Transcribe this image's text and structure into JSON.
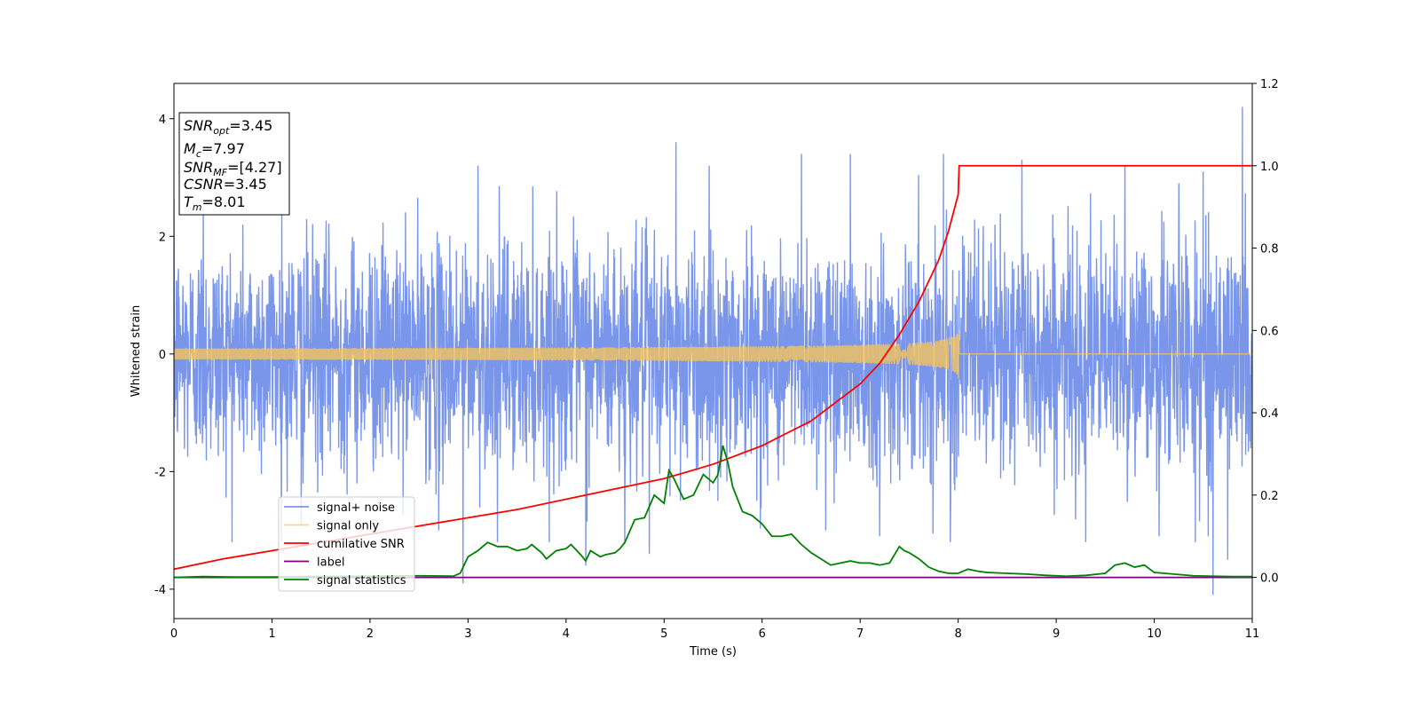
{
  "chart_data": {
    "type": "line",
    "xlabel": "Time (s)",
    "ylabel": "Whitened strain",
    "xlim": [
      0,
      11
    ],
    "ylim_left": [
      -4.5,
      4.6
    ],
    "ylim_right": [
      -0.1,
      1.2
    ],
    "x_ticks": [
      0,
      1,
      2,
      3,
      4,
      5,
      6,
      7,
      8,
      9,
      10,
      11
    ],
    "y_left_ticks": [
      -4,
      -2,
      0,
      2,
      4
    ],
    "y_right_ticks": [
      "0.0",
      "0.2",
      "0.4",
      "0.6",
      "0.8",
      "1.0",
      "1.2"
    ],
    "legend_placement": "lower-left",
    "grid": false,
    "info_box": [
      {
        "main": "SNR",
        "sub": "opt",
        "value": "=3.45"
      },
      {
        "main": "M",
        "sub": "c",
        "value": "=7.97"
      },
      {
        "main": "SNR",
        "sub": "MF",
        "value": "=[4.27]"
      },
      {
        "main": "CSNR",
        "sub": "",
        "value": "=3.45"
      },
      {
        "main": "T",
        "sub": "m",
        "value": "=8.01"
      }
    ],
    "series": [
      {
        "name": "signal+ noise",
        "axis": "left",
        "color": "#4169e1",
        "kind": "noise",
        "noise_std": 0.95,
        "peak_samples": [
          [
            0.3,
            2.6
          ],
          [
            1.1,
            2.5
          ],
          [
            1.3,
            -2.9
          ],
          [
            2.7,
            -3.0
          ],
          [
            2.95,
            -3.9
          ],
          [
            3.1,
            3.2
          ],
          [
            3.3,
            -3.2
          ],
          [
            4.2,
            -3.6
          ],
          [
            4.6,
            -3.2
          ],
          [
            4.85,
            -3.4
          ],
          [
            5.12,
            3.6
          ],
          [
            5.55,
            -2.5
          ],
          [
            6.4,
            3.4
          ],
          [
            6.65,
            -3.0
          ],
          [
            6.9,
            3.4
          ],
          [
            7.2,
            -3.1
          ],
          [
            7.85,
            3.4
          ],
          [
            7.92,
            -3.2
          ],
          [
            8.65,
            3.3
          ],
          [
            9.3,
            -3.2
          ],
          [
            9.7,
            3.2
          ],
          [
            10.05,
            -3.1
          ],
          [
            10.25,
            2.9
          ],
          [
            10.42,
            -3.2
          ],
          [
            10.5,
            3.1
          ],
          [
            10.55,
            -3.1
          ],
          [
            10.6,
            -4.1
          ],
          [
            10.75,
            -3.5
          ],
          [
            10.9,
            4.2
          ]
        ]
      },
      {
        "name": "signal only",
        "axis": "left",
        "color": "#f5c45e",
        "kind": "chirp",
        "start": 0,
        "merger": 8.01,
        "end": 11,
        "amplitude_at_merger": 0.5
      },
      {
        "name": "cumilative SNR",
        "axis": "right",
        "color": "#ff0000",
        "x": [
          0,
          0.5,
          1,
          1.5,
          2,
          2.5,
          3,
          3.5,
          4,
          4.5,
          5,
          5.5,
          6,
          6.5,
          7,
          7.2,
          7.4,
          7.6,
          7.8,
          7.9,
          8.0,
          8.01,
          11
        ],
        "y": [
          0.02,
          0.045,
          0.065,
          0.085,
          0.105,
          0.125,
          0.145,
          0.165,
          0.19,
          0.215,
          0.24,
          0.275,
          0.32,
          0.38,
          0.47,
          0.52,
          0.59,
          0.67,
          0.77,
          0.84,
          0.93,
          1.0,
          1.0
        ]
      },
      {
        "name": "label",
        "axis": "right",
        "color": "#800080",
        "x": [
          0,
          11
        ],
        "y": [
          0,
          0
        ]
      },
      {
        "name": "signal statistics",
        "axis": "right",
        "color": "#008000",
        "x": [
          0,
          0.3,
          0.6,
          1,
          1.5,
          2,
          2.5,
          2.85,
          2.92,
          3.0,
          3.1,
          3.2,
          3.3,
          3.4,
          3.5,
          3.6,
          3.65,
          3.75,
          3.8,
          3.9,
          4.0,
          4.05,
          4.15,
          4.2,
          4.25,
          4.35,
          4.4,
          4.5,
          4.55,
          4.6,
          4.7,
          4.8,
          4.9,
          5.0,
          5.05,
          5.1,
          5.2,
          5.3,
          5.4,
          5.5,
          5.55,
          5.6,
          5.65,
          5.7,
          5.8,
          5.9,
          6.0,
          6.1,
          6.2,
          6.3,
          6.4,
          6.5,
          6.6,
          6.7,
          6.8,
          6.9,
          7.0,
          7.1,
          7.2,
          7.3,
          7.4,
          7.45,
          7.5,
          7.6,
          7.7,
          7.8,
          7.9,
          8.0,
          8.1,
          8.2,
          8.3,
          8.5,
          8.7,
          8.9,
          9.1,
          9.3,
          9.5,
          9.6,
          9.7,
          9.8,
          9.9,
          10.0,
          10.2,
          10.4,
          10.6,
          10.8,
          11
        ],
        "y": [
          0.0,
          0.002,
          0.001,
          0.001,
          0.002,
          0.003,
          0.004,
          0.003,
          0.01,
          0.05,
          0.065,
          0.085,
          0.075,
          0.075,
          0.065,
          0.07,
          0.08,
          0.06,
          0.045,
          0.065,
          0.07,
          0.08,
          0.055,
          0.04,
          0.065,
          0.05,
          0.055,
          0.06,
          0.07,
          0.085,
          0.14,
          0.145,
          0.2,
          0.18,
          0.26,
          0.24,
          0.19,
          0.2,
          0.25,
          0.23,
          0.25,
          0.32,
          0.28,
          0.22,
          0.16,
          0.15,
          0.13,
          0.1,
          0.1,
          0.105,
          0.08,
          0.06,
          0.045,
          0.03,
          0.035,
          0.04,
          0.035,
          0.035,
          0.03,
          0.035,
          0.075,
          0.065,
          0.06,
          0.045,
          0.025,
          0.015,
          0.01,
          0.01,
          0.02,
          0.015,
          0.012,
          0.01,
          0.008,
          0.005,
          0.003,
          0.005,
          0.01,
          0.03,
          0.035,
          0.025,
          0.03,
          0.012,
          0.008,
          0.004,
          0.003,
          0.002,
          0.002
        ]
      }
    ]
  }
}
